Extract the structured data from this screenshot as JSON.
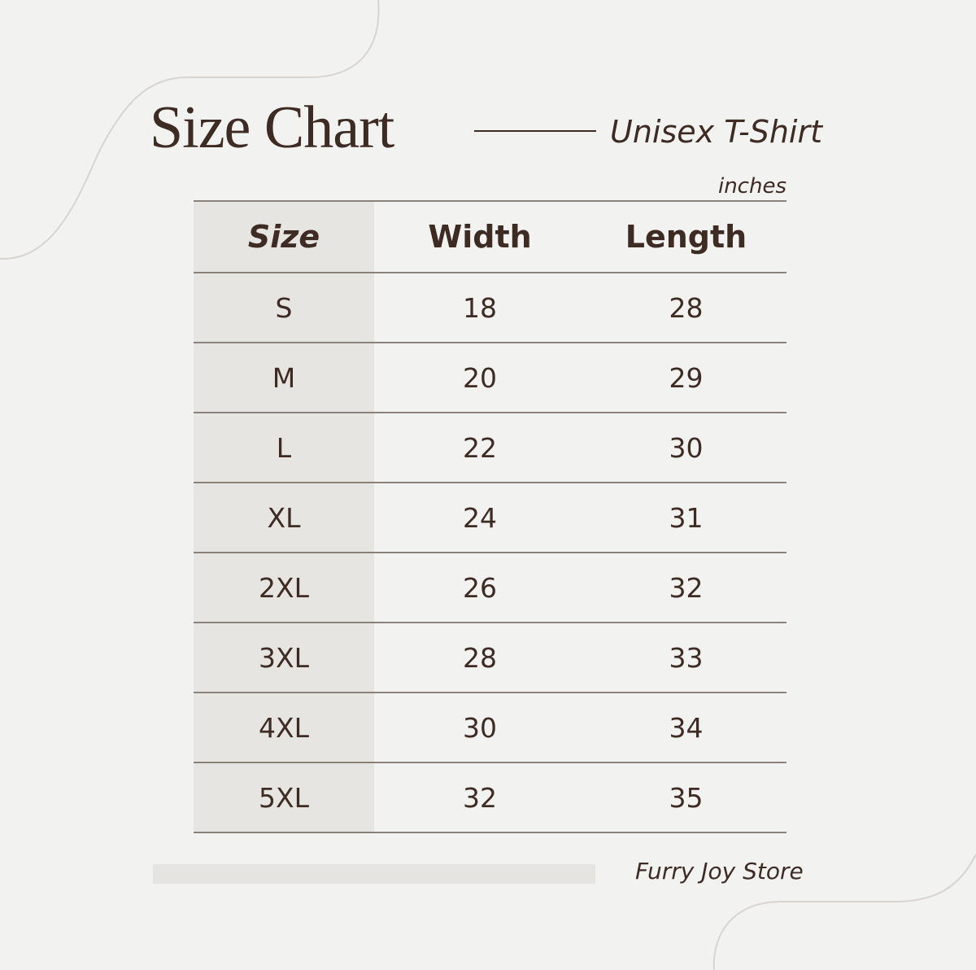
{
  "header": {
    "title": "Size Chart",
    "subtitle": "Unisex T-Shirt",
    "units": "inches"
  },
  "table": {
    "columns": [
      "Size",
      "Width",
      "Length"
    ],
    "rows": [
      [
        "S",
        "18",
        "28"
      ],
      [
        "M",
        "20",
        "29"
      ],
      [
        "L",
        "22",
        "30"
      ],
      [
        "XL",
        "24",
        "31"
      ],
      [
        "2XL",
        "26",
        "32"
      ],
      [
        "3XL",
        "28",
        "33"
      ],
      [
        "4XL",
        "30",
        "34"
      ],
      [
        "5XL",
        "32",
        "35"
      ]
    ]
  },
  "footer": {
    "store_name": "Furry Joy Store"
  },
  "colors": {
    "background": "#f2f2f1",
    "text": "#3d2b24",
    "size_column": "#e7e5e1",
    "rule": "#8c827c"
  }
}
